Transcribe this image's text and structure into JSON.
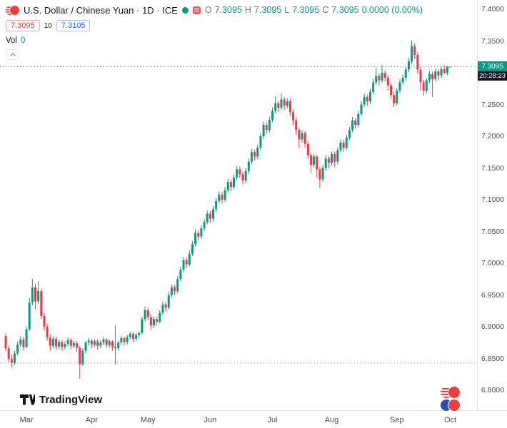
{
  "header": {
    "symbol": "U.S. Dollar / Chinese Yuan",
    "separator": "·",
    "interval": "1D",
    "exchange": "ICE",
    "ohlc": {
      "o_label": "O",
      "open": "7.3095",
      "h_label": "H",
      "high": "7.3095",
      "l_label": "L",
      "low": "7.3095",
      "c_label": "C",
      "close": "7.3095",
      "change": "0.0000 (0.00%)"
    },
    "trade": {
      "sell": "7.3095",
      "spread": "10",
      "buy": "7.3105"
    },
    "volume": {
      "label": "Vol",
      "value": "0"
    }
  },
  "main": {
    "price_badge": {
      "price": "7.3095",
      "countdown": "20:28:23",
      "bg": "#089981"
    }
  },
  "footer": {
    "logo_text": "TradingView"
  },
  "colors": {
    "up": "#089981",
    "down": "#F23645",
    "sell_accent": "#F23645",
    "buy_accent": "#2962FF",
    "axis_text": "#4a4e59",
    "countdown_bg": "#131722"
  },
  "chart_data": {
    "type": "candlestick",
    "title": "U.S. Dollar / Chinese Yuan",
    "interval": "1D",
    "exchange": "ICE",
    "up_color": "#089981",
    "down_color": "#F23645",
    "grid": false,
    "y_axis": {
      "min": 6.8,
      "max": 7.4,
      "ticks": [
        7.4,
        7.35,
        7.3,
        7.25,
        7.2,
        7.15,
        7.1,
        7.05,
        7.0,
        6.95,
        6.9,
        6.85,
        6.8
      ]
    },
    "x_ticks": [
      {
        "label": "Mar",
        "index": 7
      },
      {
        "label": "Apr",
        "index": 29
      },
      {
        "label": "May",
        "index": 48
      },
      {
        "label": "Jun",
        "index": 69
      },
      {
        "label": "Jul",
        "index": 90
      },
      {
        "label": "Aug",
        "index": 110
      },
      {
        "label": "Sep",
        "index": 132
      },
      {
        "label": "Oct",
        "index": 150
      }
    ],
    "reference_lines": [
      {
        "price": 7.3095,
        "color": "#9598A1",
        "style": "dotted"
      },
      {
        "price": 6.843,
        "color": "#9598A1",
        "style": "dotted"
      }
    ],
    "candles": [
      [
        6.885,
        6.889,
        6.862,
        6.866
      ],
      [
        6.866,
        6.87,
        6.845,
        6.849
      ],
      [
        6.849,
        6.856,
        6.836,
        6.843
      ],
      [
        6.843,
        6.862,
        6.84,
        6.858
      ],
      [
        6.858,
        6.876,
        6.855,
        6.872
      ],
      [
        6.872,
        6.885,
        6.868,
        6.88
      ],
      [
        6.88,
        6.884,
        6.863,
        6.868
      ],
      [
        6.868,
        6.9,
        6.866,
        6.896
      ],
      [
        6.896,
        6.945,
        6.893,
        6.938
      ],
      [
        6.938,
        6.975,
        6.934,
        6.962
      ],
      [
        6.962,
        6.968,
        6.928,
        6.94
      ],
      [
        6.94,
        6.972,
        6.936,
        6.956
      ],
      [
        6.956,
        6.96,
        6.912,
        6.917
      ],
      [
        6.917,
        6.922,
        6.894,
        6.9
      ],
      [
        6.9,
        6.905,
        6.878,
        6.883
      ],
      [
        6.883,
        6.888,
        6.862,
        6.87
      ],
      [
        6.87,
        6.885,
        6.866,
        6.881
      ],
      [
        6.881,
        6.884,
        6.864,
        6.869
      ],
      [
        6.869,
        6.88,
        6.865,
        6.876
      ],
      [
        6.876,
        6.879,
        6.862,
        6.868
      ],
      [
        6.868,
        6.877,
        6.864,
        6.873
      ],
      [
        6.873,
        6.883,
        6.869,
        6.879
      ],
      [
        6.879,
        6.882,
        6.865,
        6.87
      ],
      [
        6.87,
        6.878,
        6.866,
        6.874
      ],
      [
        6.874,
        6.877,
        6.86,
        6.867
      ],
      [
        6.867,
        6.87,
        6.818,
        6.841
      ],
      [
        6.841,
        6.866,
        6.838,
        6.862
      ],
      [
        6.862,
        6.878,
        6.858,
        6.875
      ],
      [
        6.875,
        6.882,
        6.87,
        6.878
      ],
      [
        6.878,
        6.88,
        6.866,
        6.872
      ],
      [
        6.872,
        6.88,
        6.868,
        6.877
      ],
      [
        6.877,
        6.88,
        6.864,
        6.87
      ],
      [
        6.87,
        6.879,
        6.866,
        6.875
      ],
      [
        6.875,
        6.884,
        6.871,
        6.88
      ],
      [
        6.88,
        6.882,
        6.866,
        6.871
      ],
      [
        6.871,
        6.88,
        6.867,
        6.877
      ],
      [
        6.877,
        6.879,
        6.862,
        6.868
      ],
      [
        6.868,
        6.902,
        6.84,
        6.866
      ],
      [
        6.866,
        6.878,
        6.862,
        6.875
      ],
      [
        6.875,
        6.886,
        6.871,
        6.882
      ],
      [
        6.882,
        6.884,
        6.87,
        6.876
      ],
      [
        6.876,
        6.887,
        6.872,
        6.884
      ],
      [
        6.884,
        6.892,
        6.88,
        6.889
      ],
      [
        6.889,
        6.891,
        6.876,
        6.881
      ],
      [
        6.881,
        6.89,
        6.877,
        6.887
      ],
      [
        6.887,
        6.893,
        6.882,
        6.89
      ],
      [
        6.89,
        6.916,
        6.888,
        6.912
      ],
      [
        6.912,
        6.932,
        6.908,
        6.926
      ],
      [
        6.926,
        6.93,
        6.91,
        6.915
      ],
      [
        6.915,
        6.92,
        6.895,
        6.902
      ],
      [
        6.902,
        6.916,
        6.898,
        6.912
      ],
      [
        6.912,
        6.916,
        6.902,
        6.908
      ],
      [
        6.908,
        6.926,
        6.905,
        6.922
      ],
      [
        6.922,
        6.94,
        6.918,
        6.935
      ],
      [
        6.935,
        6.939,
        6.924,
        6.93
      ],
      [
        6.93,
        6.955,
        6.927,
        6.95
      ],
      [
        6.95,
        6.967,
        6.946,
        6.962
      ],
      [
        6.962,
        6.966,
        6.95,
        6.956
      ],
      [
        6.956,
        6.98,
        6.953,
        6.975
      ],
      [
        6.975,
        6.995,
        6.971,
        6.99
      ],
      [
        6.99,
        7.01,
        6.986,
        7.005
      ],
      [
        7.005,
        7.009,
        6.992,
        6.998
      ],
      [
        6.998,
        7.02,
        6.995,
        7.015
      ],
      [
        7.015,
        7.035,
        7.011,
        7.03
      ],
      [
        7.03,
        7.053,
        7.026,
        7.048
      ],
      [
        7.048,
        7.052,
        7.036,
        7.042
      ],
      [
        7.042,
        7.06,
        7.038,
        7.055
      ],
      [
        7.055,
        7.07,
        7.051,
        7.065
      ],
      [
        7.065,
        7.083,
        7.061,
        7.078
      ],
      [
        7.078,
        7.082,
        7.064,
        7.07
      ],
      [
        7.07,
        7.09,
        7.066,
        7.085
      ],
      [
        7.085,
        7.103,
        7.081,
        7.098
      ],
      [
        7.098,
        7.113,
        7.094,
        7.108
      ],
      [
        7.108,
        7.112,
        7.094,
        7.1
      ],
      [
        7.1,
        7.12,
        7.096,
        7.115
      ],
      [
        7.115,
        7.133,
        7.111,
        7.128
      ],
      [
        7.128,
        7.132,
        7.114,
        7.12
      ],
      [
        7.12,
        7.14,
        7.116,
        7.135
      ],
      [
        7.135,
        7.153,
        7.131,
        7.148
      ],
      [
        7.148,
        7.152,
        7.134,
        7.14
      ],
      [
        7.14,
        7.144,
        7.124,
        7.13
      ],
      [
        7.13,
        7.15,
        7.126,
        7.145
      ],
      [
        7.145,
        7.165,
        7.141,
        7.16
      ],
      [
        7.16,
        7.18,
        7.156,
        7.175
      ],
      [
        7.175,
        7.179,
        7.162,
        7.168
      ],
      [
        7.168,
        7.187,
        7.164,
        7.182
      ],
      [
        7.182,
        7.205,
        7.178,
        7.2
      ],
      [
        7.2,
        7.223,
        7.196,
        7.218
      ],
      [
        7.218,
        7.222,
        7.204,
        7.21
      ],
      [
        7.21,
        7.231,
        7.206,
        7.226
      ],
      [
        7.226,
        7.245,
        7.222,
        7.24
      ],
      [
        7.24,
        7.263,
        7.236,
        7.252
      ],
      [
        7.252,
        7.256,
        7.238,
        7.245
      ],
      [
        7.245,
        7.268,
        7.241,
        7.258
      ],
      [
        7.258,
        7.262,
        7.242,
        7.248
      ],
      [
        7.248,
        7.26,
        7.244,
        7.255
      ],
      [
        7.255,
        7.259,
        7.232,
        7.238
      ],
      [
        7.238,
        7.242,
        7.218,
        7.225
      ],
      [
        7.225,
        7.23,
        7.202,
        7.21
      ],
      [
        7.21,
        7.214,
        7.182,
        7.195
      ],
      [
        7.195,
        7.21,
        7.19,
        7.205
      ],
      [
        7.205,
        7.208,
        7.182,
        7.188
      ],
      [
        7.188,
        7.192,
        7.164,
        7.17
      ],
      [
        7.17,
        7.174,
        7.142,
        7.155
      ],
      [
        7.155,
        7.172,
        7.15,
        7.168
      ],
      [
        7.168,
        7.171,
        7.135,
        7.148
      ],
      [
        7.148,
        7.152,
        7.118,
        7.132
      ],
      [
        7.132,
        7.155,
        7.128,
        7.15
      ],
      [
        7.15,
        7.17,
        7.146,
        7.165
      ],
      [
        7.165,
        7.169,
        7.15,
        7.158
      ],
      [
        7.158,
        7.176,
        7.154,
        7.172
      ],
      [
        7.172,
        7.176,
        7.152,
        7.16
      ],
      [
        7.16,
        7.182,
        7.156,
        7.178
      ],
      [
        7.178,
        7.195,
        7.174,
        7.19
      ],
      [
        7.19,
        7.194,
        7.176,
        7.182
      ],
      [
        7.182,
        7.202,
        7.178,
        7.198
      ],
      [
        7.198,
        7.215,
        7.194,
        7.21
      ],
      [
        7.21,
        7.23,
        7.206,
        7.225
      ],
      [
        7.225,
        7.229,
        7.212,
        7.218
      ],
      [
        7.218,
        7.24,
        7.214,
        7.235
      ],
      [
        7.235,
        7.255,
        7.231,
        7.25
      ],
      [
        7.25,
        7.267,
        7.246,
        7.262
      ],
      [
        7.262,
        7.266,
        7.248,
        7.255
      ],
      [
        7.255,
        7.275,
        7.251,
        7.27
      ],
      [
        7.27,
        7.29,
        7.266,
        7.285
      ],
      [
        7.285,
        7.308,
        7.281,
        7.295
      ],
      [
        7.295,
        7.299,
        7.28,
        7.288
      ],
      [
        7.288,
        7.312,
        7.284,
        7.3
      ],
      [
        7.3,
        7.304,
        7.286,
        7.292
      ],
      [
        7.292,
        7.296,
        7.272,
        7.28
      ],
      [
        7.28,
        7.284,
        7.258,
        7.265
      ],
      [
        7.265,
        7.27,
        7.246,
        7.252
      ],
      [
        7.252,
        7.276,
        7.248,
        7.272
      ],
      [
        7.272,
        7.29,
        7.268,
        7.285
      ],
      [
        7.285,
        7.297,
        7.281,
        7.292
      ],
      [
        7.292,
        7.31,
        7.288,
        7.305
      ],
      [
        7.305,
        7.323,
        7.301,
        7.318
      ],
      [
        7.318,
        7.351,
        7.314,
        7.342
      ],
      [
        7.342,
        7.346,
        7.322,
        7.328
      ],
      [
        7.328,
        7.332,
        7.298,
        7.305
      ],
      [
        7.305,
        7.309,
        7.272,
        7.285
      ],
      [
        7.285,
        7.289,
        7.264,
        7.272
      ],
      [
        7.272,
        7.292,
        7.268,
        7.288
      ],
      [
        7.288,
        7.303,
        7.284,
        7.298
      ],
      [
        7.298,
        7.302,
        7.262,
        7.29
      ],
      [
        7.29,
        7.306,
        7.286,
        7.302
      ],
      [
        7.302,
        7.305,
        7.288,
        7.296
      ],
      [
        7.296,
        7.31,
        7.292,
        7.3055
      ],
      [
        7.3055,
        7.312,
        7.298,
        7.3
      ],
      [
        7.3,
        7.3105,
        7.296,
        7.3095
      ],
      [
        7.3095,
        7.3095,
        7.3095,
        7.3095
      ]
    ]
  }
}
